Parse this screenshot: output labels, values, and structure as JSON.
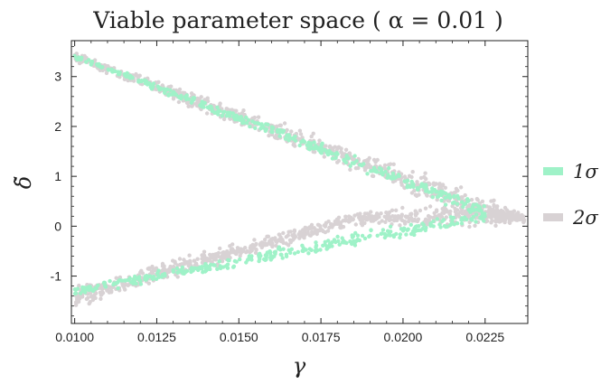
{
  "chart_data": {
    "type": "scatter",
    "title": "Viable parameter space ( α = 0.01 )",
    "xlabel": "γ",
    "ylabel": "δ̃",
    "xlim": [
      0.0099,
      0.0238
    ],
    "ylim": [
      -1.95,
      3.72
    ],
    "x_ticks": [
      {
        "value": 0.01,
        "label": "0.0100"
      },
      {
        "value": 0.0125,
        "label": "0.0125"
      },
      {
        "value": 0.015,
        "label": "0.0150"
      },
      {
        "value": 0.0175,
        "label": "0.0175"
      },
      {
        "value": 0.02,
        "label": "0.0200"
      },
      {
        "value": 0.0225,
        "label": "0.0225"
      }
    ],
    "y_ticks": [
      {
        "value": -1,
        "label": "-1"
      },
      {
        "value": 0,
        "label": "0"
      },
      {
        "value": 1,
        "label": "1"
      },
      {
        "value": 2,
        "label": "2"
      },
      {
        "value": 3,
        "label": "3"
      }
    ],
    "legend_position": "right",
    "series": [
      {
        "name": "2σ",
        "color": "#d8d2d4",
        "region": {
          "upper_band": {
            "x": [
              0.01,
              0.0225,
              0.0237
            ],
            "y_center": [
              3.4,
              0.35,
              0.15
            ],
            "half_width": [
              0.13,
              0.35,
              0.12
            ]
          },
          "lower_band": {
            "x": [
              0.01,
              0.0185,
              0.0225,
              0.0237
            ],
            "y_center": [
              -1.42,
              0.15,
              0.25,
              0.15
            ],
            "half_width": [
              0.26,
              0.17,
              0.35,
              0.12
            ]
          },
          "x_range": [
            0.01,
            0.0237
          ]
        }
      },
      {
        "name": "1σ",
        "color": "#9ff2c8",
        "region": {
          "upper_band": {
            "x": [
              0.01,
              0.0225
            ],
            "y_center": [
              3.4,
              0.3
            ],
            "half_width": [
              0.06,
              0.2
            ]
          },
          "lower_band": {
            "x": [
              0.01,
              0.0225
            ],
            "y_center": [
              -1.3,
              0.2
            ],
            "half_width": [
              0.12,
              0.2
            ]
          },
          "x_range": [
            0.01,
            0.0225
          ]
        }
      }
    ]
  }
}
